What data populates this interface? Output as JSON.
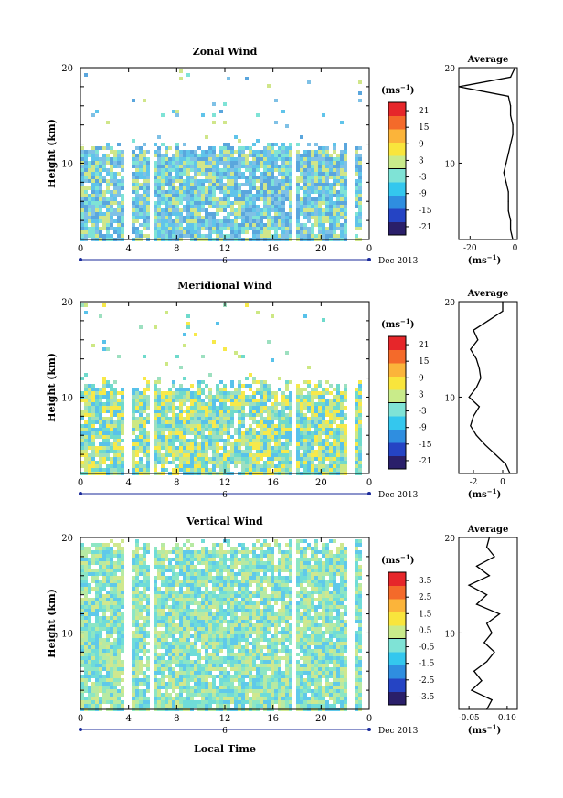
{
  "common": {
    "x_ticks": [
      "0",
      "4",
      "8",
      "12",
      "16",
      "20",
      "0"
    ],
    "date_marker": "6",
    "date_label": "Dec 2013",
    "xlabel": "Local Time",
    "ylabel": "Height (km)",
    "y_ticks": [
      "20",
      "10"
    ],
    "colorbar_unit": "(ms",
    "avg_title": "Average",
    "avg_unit": "(ms"
  },
  "chart_data": [
    {
      "type": "heatmap",
      "name": "zonal",
      "title": "Zonal Wind",
      "xlim": [
        0,
        24
      ],
      "ylim": [
        2,
        20
      ],
      "colorbar_ticks": [
        "21",
        "15",
        "9",
        "3",
        "-3",
        "-9",
        "-15",
        "-21"
      ],
      "colorbar_range": [
        -24,
        24
      ],
      "profile": {
        "xlim": [
          -25,
          1
        ],
        "x_ticks": [
          "-20",
          "0"
        ],
        "x_tick_values": [
          -20,
          0
        ],
        "heights": [
          2,
          3,
          4,
          5,
          6,
          7,
          8,
          9,
          10,
          11,
          12,
          13,
          14,
          15,
          16,
          17,
          18,
          19,
          20
        ],
        "values": [
          -1,
          -2,
          -2,
          -3,
          -3,
          -3,
          -4,
          -5,
          -4,
          -3,
          -2,
          -1,
          -1,
          -2,
          -2,
          -3,
          -25,
          -2,
          0
        ]
      },
      "colors": [
        "#7fc1e6",
        "#5aa6dd",
        "#d0e68a",
        "#7fe3d6",
        "#60c4ea"
      ]
    },
    {
      "type": "heatmap",
      "name": "meridional",
      "title": "Meridional Wind",
      "xlim": [
        0,
        24
      ],
      "ylim": [
        2,
        20
      ],
      "colorbar_ticks": [
        "21",
        "15",
        "9",
        "3",
        "-3",
        "-9",
        "-15",
        "-21"
      ],
      "colorbar_range": [
        -24,
        24
      ],
      "profile": {
        "xlim": [
          -3,
          1
        ],
        "x_ticks": [
          "-2",
          "0"
        ],
        "x_tick_values": [
          -2,
          0
        ],
        "heights": [
          2,
          3,
          4,
          5,
          6,
          7,
          8,
          9,
          10,
          11,
          12,
          13,
          14,
          15,
          16,
          17,
          18,
          19,
          20
        ],
        "values": [
          0.5,
          0.2,
          -0.5,
          -1.2,
          -1.8,
          -2.2,
          -2.0,
          -1.6,
          -2.3,
          -1.8,
          -1.5,
          -1.6,
          -1.8,
          -2.2,
          -1.7,
          -2.0,
          -1.0,
          0,
          0
        ]
      },
      "colors": [
        "#f7e94a",
        "#cde884",
        "#6fdacc",
        "#58c2ea",
        "#9de0c0"
      ]
    },
    {
      "type": "heatmap",
      "name": "vertical",
      "title": "Vertical Wind",
      "xlim": [
        0,
        24
      ],
      "ylim": [
        2,
        20
      ],
      "colorbar_ticks": [
        "3.5",
        "2.5",
        "1.5",
        "0.5",
        "-0.5",
        "-1.5",
        "-2.5",
        "-3.5"
      ],
      "colorbar_range": [
        -4,
        4
      ],
      "profile": {
        "xlim": [
          -0.09,
          0.14
        ],
        "x_ticks": [
          "-0.05",
          "0.10"
        ],
        "x_tick_values": [
          -0.05,
          0.1
        ],
        "heights": [
          2,
          3,
          4,
          5,
          6,
          7,
          8,
          9,
          10,
          11,
          12,
          13,
          14,
          15,
          16,
          17,
          18,
          19,
          20
        ],
        "values": [
          0.02,
          0.04,
          -0.04,
          0.0,
          -0.03,
          0.02,
          0.05,
          0.01,
          0.04,
          0.02,
          0.07,
          -0.02,
          0.02,
          -0.05,
          0.03,
          -0.02,
          0.05,
          0.02,
          0.03
        ]
      },
      "colors": [
        "#8ce6c4",
        "#6fdcd8",
        "#b7eaa3",
        "#5fc9ea",
        "#cfe88f"
      ]
    }
  ]
}
